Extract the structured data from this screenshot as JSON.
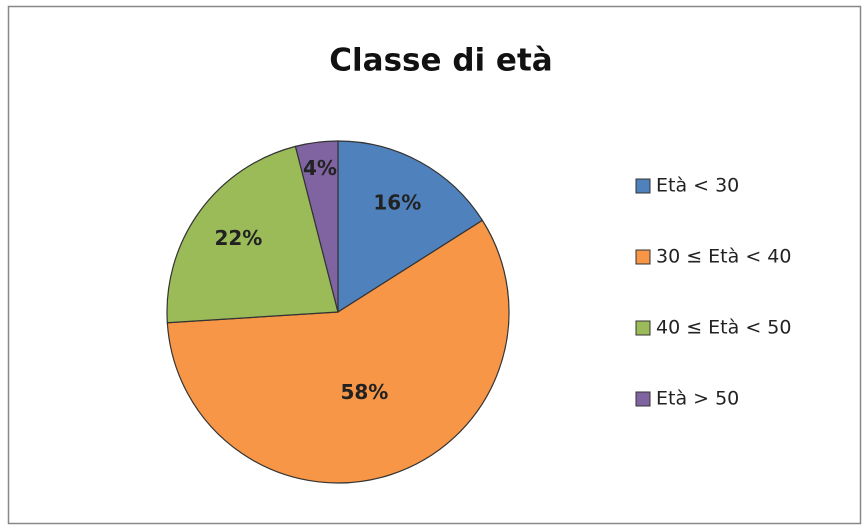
{
  "chart_data": {
    "type": "pie",
    "title": "Classe di età",
    "categories": [
      "Età < 30",
      "30 ≤ Età < 40",
      "40 ≤ Età < 50",
      "Età > 50"
    ],
    "values": [
      16,
      58,
      22,
      4
    ],
    "value_labels": [
      "16%",
      "58%",
      "22%",
      "4%"
    ],
    "colors": [
      "#4f81bd",
      "#f79646",
      "#9bbb59",
      "#8064a2"
    ],
    "legend": "right"
  }
}
